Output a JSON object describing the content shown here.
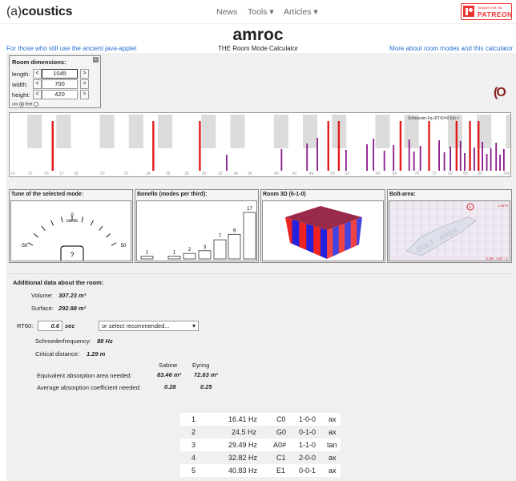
{
  "nav": {
    "logo_a": "(a)",
    "logo_b": "coustics",
    "items": [
      "News",
      "Tools ▾",
      "Articles ▾"
    ],
    "patreon_small": "Support me via",
    "patreon_label": "PATREON"
  },
  "header": {
    "title": "amroc",
    "subtitle": "THE Room Mode Calculator",
    "left_link": "For those who still use the ancient java-applet",
    "right_link": "More about room modes and this calculator"
  },
  "room": {
    "heading": "Room dimensions:",
    "close": "x",
    "length_label": "length:",
    "length": "1045",
    "width_label": "width:",
    "width": "700",
    "height_label": "height:",
    "height": "420",
    "unit_cm": "cm",
    "unit_feet": "feet",
    "dec": "<",
    "inc": ">"
  },
  "spectrum": {
    "legend": "Schroeder-Fq (RT60=0.6s) >",
    "ticks": [
      "14",
      "15",
      "16",
      "17",
      "18",
      "20",
      "22",
      "24",
      "26",
      "28",
      "30",
      "32",
      "34",
      "36",
      "40",
      "43",
      "46",
      "50",
      "53",
      "60",
      "64",
      "70",
      "75",
      "80",
      "85",
      "90",
      "100"
    ],
    "tick_values": [
      14,
      15,
      16,
      17,
      18,
      20,
      22,
      24,
      26,
      28,
      30,
      32,
      34,
      36,
      40,
      43,
      46,
      50,
      53,
      60,
      64,
      70,
      75,
      80,
      85,
      90,
      100
    ],
    "freq_range": [
      14,
      100
    ],
    "red_freqs": [
      16.41,
      24.5,
      29.49,
      49.2,
      51.3,
      65.6,
      73.5,
      82.0,
      86.5,
      89.5
    ],
    "purple_freqs": [
      32.82,
      40.83,
      45.2,
      47.1,
      52.8,
      57.4,
      58.9,
      61.5,
      63.8,
      67.9,
      69.2,
      71.0,
      76.5,
      78.1,
      80.0,
      83.3,
      84.7,
      88.0,
      90.9,
      92.5,
      94.0,
      96.0,
      97.5,
      99.0
    ]
  },
  "panels": {
    "tune_title": "Tune of the selected mode:",
    "tune_zero": "0",
    "tune_cents": "cents",
    "tune_min": "-50",
    "tune_max": "50",
    "tune_value": "?",
    "bonello_title": "Bonello (modes per third):",
    "bonello_values": [
      1,
      0,
      1,
      2,
      3,
      7,
      9,
      17
    ],
    "room3d_title": "Room 3D (6-1-0)",
    "bolt_title": "Bolt-area:",
    "bolt_watermark": "BOLT - AREA",
    "bolt_axes": "L:W:H",
    "bolt_ratio": "2.49 : 1.67 : 1"
  },
  "additional": {
    "heading": "Additional data about the room:",
    "volume_label": "Volume:",
    "volume": "307.23 m³",
    "surface_label": "Surface:",
    "surface": "292.88 m²",
    "rt60_label": "RT60:",
    "rt60": "0.6",
    "rt60_unit": "sec",
    "recommended": "or select recommended...",
    "schroeder_label": "Schroederfrequency:",
    "schroeder": "88 Hz",
    "critical_label": "Critical distance:",
    "critical": "1.29 m",
    "col_sabine": "Sabine",
    "col_eyring": "Eyring",
    "row1_label": "Equivalent absorption area needed:",
    "row1_sabine": "83.46 m²",
    "row1_eyring": "72.63 m²",
    "row2_label": "Average absorption coefficient needed:",
    "row2_sabine": "0.28",
    "row2_eyring": "0.25"
  },
  "modes": [
    {
      "n": "1",
      "freq": "16.41 Hz",
      "note": "C0",
      "mode": "1-0-0",
      "type": "ax"
    },
    {
      "n": "2",
      "freq": "24.5 Hz",
      "note": "G0",
      "mode": "0-1-0",
      "type": "ax"
    },
    {
      "n": "3",
      "freq": "29.49 Hz",
      "note": "A0#",
      "mode": "1-1-0",
      "type": "tan"
    },
    {
      "n": "4",
      "freq": "32.82 Hz",
      "note": "C1",
      "mode": "2-0-0",
      "type": "ax"
    },
    {
      "n": "5",
      "freq": "40.83 Hz",
      "note": "E1",
      "mode": "0-0-1",
      "type": "ax"
    }
  ]
}
